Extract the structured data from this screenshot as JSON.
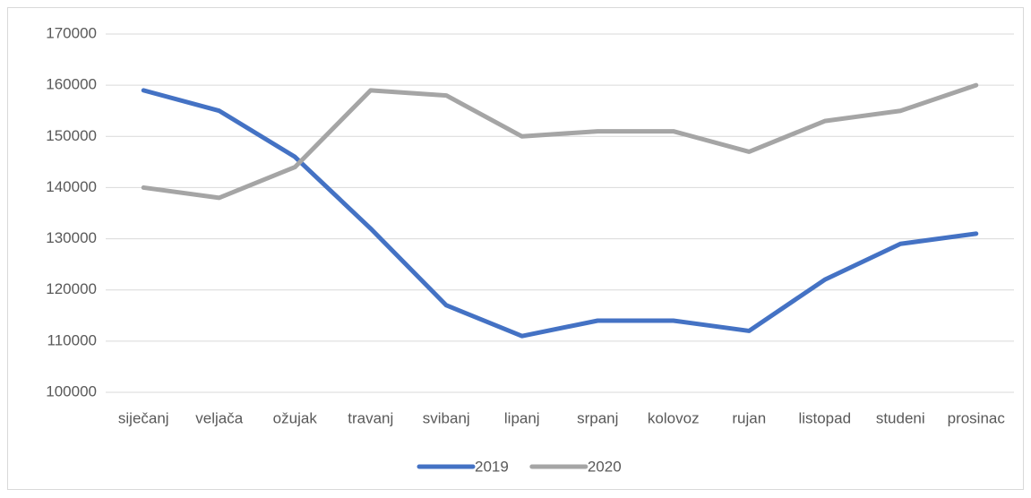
{
  "chart_data": {
    "type": "line",
    "categories": [
      "siječanj",
      "veljača",
      "ožujak",
      "travanj",
      "svibanj",
      "lipanj",
      "srpanj",
      "kolovoz",
      "rujan",
      "listopad",
      "studeni",
      "prosinac"
    ],
    "series": [
      {
        "name": "2019",
        "color": "#4472c4",
        "values": [
          159000,
          155000,
          146000,
          132000,
          117000,
          111000,
          114000,
          114000,
          112000,
          122000,
          129000,
          131000
        ]
      },
      {
        "name": "2020",
        "color": "#a5a5a5",
        "values": [
          140000,
          138000,
          144000,
          159000,
          158000,
          150000,
          151000,
          151000,
          147000,
          153000,
          155000,
          160000
        ]
      }
    ],
    "ylim": [
      100000,
      170000
    ],
    "yticks": [
      100000,
      110000,
      120000,
      130000,
      140000,
      150000,
      160000,
      170000
    ],
    "grid": true,
    "legend": "bottom"
  }
}
